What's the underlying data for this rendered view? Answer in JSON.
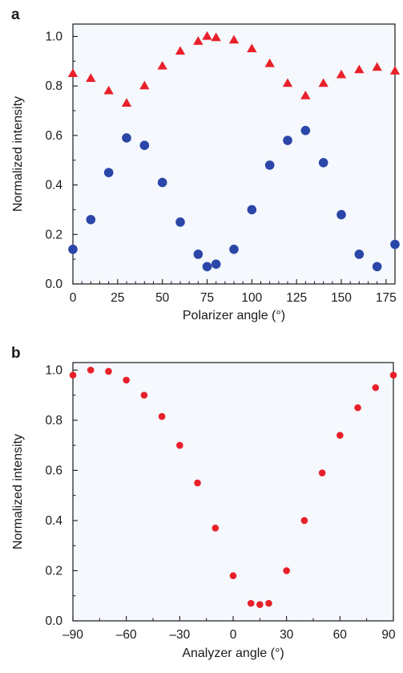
{
  "chart_data": [
    {
      "type": "scatter",
      "panel_label": "a",
      "xlabel": "Polarizer angle (°)",
      "ylabel": "Normalized intensity",
      "xlim": [
        0,
        180
      ],
      "ylim": [
        0,
        1.05
      ],
      "xticks": [
        0,
        25,
        50,
        75,
        100,
        125,
        150,
        175
      ],
      "yticks": [
        0.0,
        0.2,
        0.4,
        0.6,
        0.8,
        1.0
      ],
      "xtick_labels": [
        "0",
        "25",
        "50",
        "75",
        "100",
        "125",
        "150",
        "175"
      ],
      "ytick_labels": [
        "0.0",
        "0.2",
        "0.4",
        "0.6",
        "0.8",
        "1.0"
      ],
      "grid": false,
      "background": "#f5f8fd",
      "series": [
        {
          "marker": "triangle",
          "color": "#e8202a",
          "x": [
            0,
            10,
            20,
            30,
            40,
            50,
            60,
            70,
            75,
            80,
            90,
            100,
            110,
            120,
            130,
            140,
            150,
            160,
            170,
            180
          ],
          "y": [
            0.85,
            0.83,
            0.78,
            0.73,
            0.8,
            0.88,
            0.94,
            0.98,
            1.0,
            0.995,
            0.985,
            0.95,
            0.89,
            0.81,
            0.76,
            0.81,
            0.845,
            0.865,
            0.875,
            0.86
          ]
        },
        {
          "marker": "circle",
          "color": "#2a46a8",
          "x": [
            0,
            10,
            20,
            30,
            40,
            50,
            60,
            70,
            75,
            80,
            90,
            100,
            110,
            120,
            130,
            140,
            150,
            160,
            170,
            180
          ],
          "y": [
            0.14,
            0.26,
            0.45,
            0.59,
            0.56,
            0.41,
            0.25,
            0.12,
            0.07,
            0.08,
            0.14,
            0.3,
            0.48,
            0.58,
            0.62,
            0.49,
            0.28,
            0.12,
            0.07,
            0.16
          ]
        }
      ]
    },
    {
      "type": "scatter",
      "panel_label": "b",
      "xlabel": "Analyzer angle (°)",
      "ylabel": "Normalized intensity",
      "xlim": [
        -90,
        90
      ],
      "ylim": [
        0,
        1.03
      ],
      "xticks": [
        -90,
        -60,
        -30,
        0,
        30,
        60,
        90
      ],
      "yticks": [
        0.0,
        0.2,
        0.4,
        0.6,
        0.8,
        1.0
      ],
      "xtick_labels": [
        "–90",
        "–60",
        "–30",
        "0",
        "30",
        "60",
        "90"
      ],
      "ytick_labels": [
        "0.0",
        "0.2",
        "0.4",
        "0.6",
        "0.8",
        "1.0"
      ],
      "grid": false,
      "background": "#f5f8fd",
      "series": [
        {
          "marker": "circle",
          "color": "#e8202a",
          "x": [
            -90,
            -80,
            -70,
            -60,
            -50,
            -40,
            -30,
            -20,
            -10,
            0,
            10,
            15,
            20,
            30,
            40,
            50,
            60,
            70,
            80,
            90
          ],
          "y": [
            0.98,
            1.0,
            0.995,
            0.96,
            0.9,
            0.815,
            0.7,
            0.55,
            0.37,
            0.18,
            0.07,
            0.065,
            0.07,
            0.2,
            0.4,
            0.59,
            0.74,
            0.85,
            0.93,
            0.98
          ]
        }
      ]
    }
  ]
}
